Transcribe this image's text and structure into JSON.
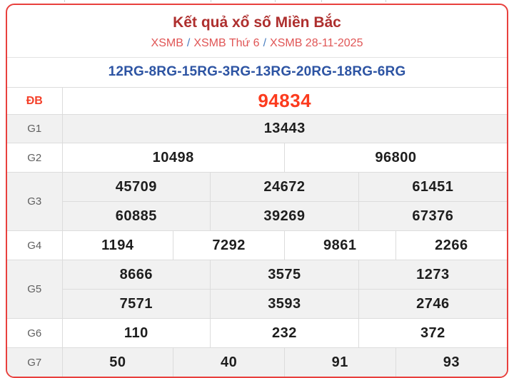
{
  "header": {
    "title": "Kết quả xổ số Miền Bắc",
    "breadcrumb_separator": "/",
    "breadcrumb": [
      {
        "label": "XSMB"
      },
      {
        "label": "XSMB Thứ 6"
      },
      {
        "label": "XSMB 28-11-2025"
      }
    ]
  },
  "code_line": "12RG-8RG-15RG-3RG-13RG-20RG-18RG-6RG",
  "results_table": {
    "rows": [
      {
        "label": "ĐB",
        "highlight": true,
        "shaded": false,
        "height": "h37",
        "groups": [
          [
            "94834"
          ]
        ]
      },
      {
        "label": "G1",
        "highlight": false,
        "shaded": true,
        "height": "h39",
        "groups": [
          [
            "13443"
          ]
        ]
      },
      {
        "label": "G2",
        "highlight": false,
        "shaded": false,
        "height": "h40",
        "groups": [
          [
            "10498",
            "96800"
          ]
        ]
      },
      {
        "label": "G3",
        "highlight": false,
        "shaded": true,
        "height": "h40",
        "groups": [
          [
            "45709",
            "24672",
            "61451"
          ],
          [
            "60885",
            "39269",
            "67376"
          ]
        ]
      },
      {
        "label": "G4",
        "highlight": false,
        "shaded": false,
        "height": "h40",
        "groups": [
          [
            "1194",
            "7292",
            "9861",
            "2266"
          ]
        ]
      },
      {
        "label": "G5",
        "highlight": false,
        "shaded": true,
        "height": "h40",
        "groups": [
          [
            "8666",
            "3575",
            "1273"
          ],
          [
            "7571",
            "3593",
            "2746"
          ]
        ]
      },
      {
        "label": "G6",
        "highlight": false,
        "shaded": false,
        "height": "h40",
        "groups": [
          [
            "110",
            "232",
            "372"
          ]
        ]
      },
      {
        "label": "G7",
        "highlight": false,
        "shaded": true,
        "height": "h40",
        "groups": [
          [
            "50",
            "40",
            "91",
            "93"
          ]
        ]
      }
    ]
  },
  "colors": {
    "card_border": "#e8403d",
    "title": "#ae2f2e",
    "breadcrumb_link": "#e05555",
    "breadcrumb_separator": "#4a7fc1",
    "code_line": "#2d54a3",
    "special_prize": "#fc3b1e",
    "shaded_row": "#f1f1f1",
    "cell_border": "#dcdcdc"
  }
}
